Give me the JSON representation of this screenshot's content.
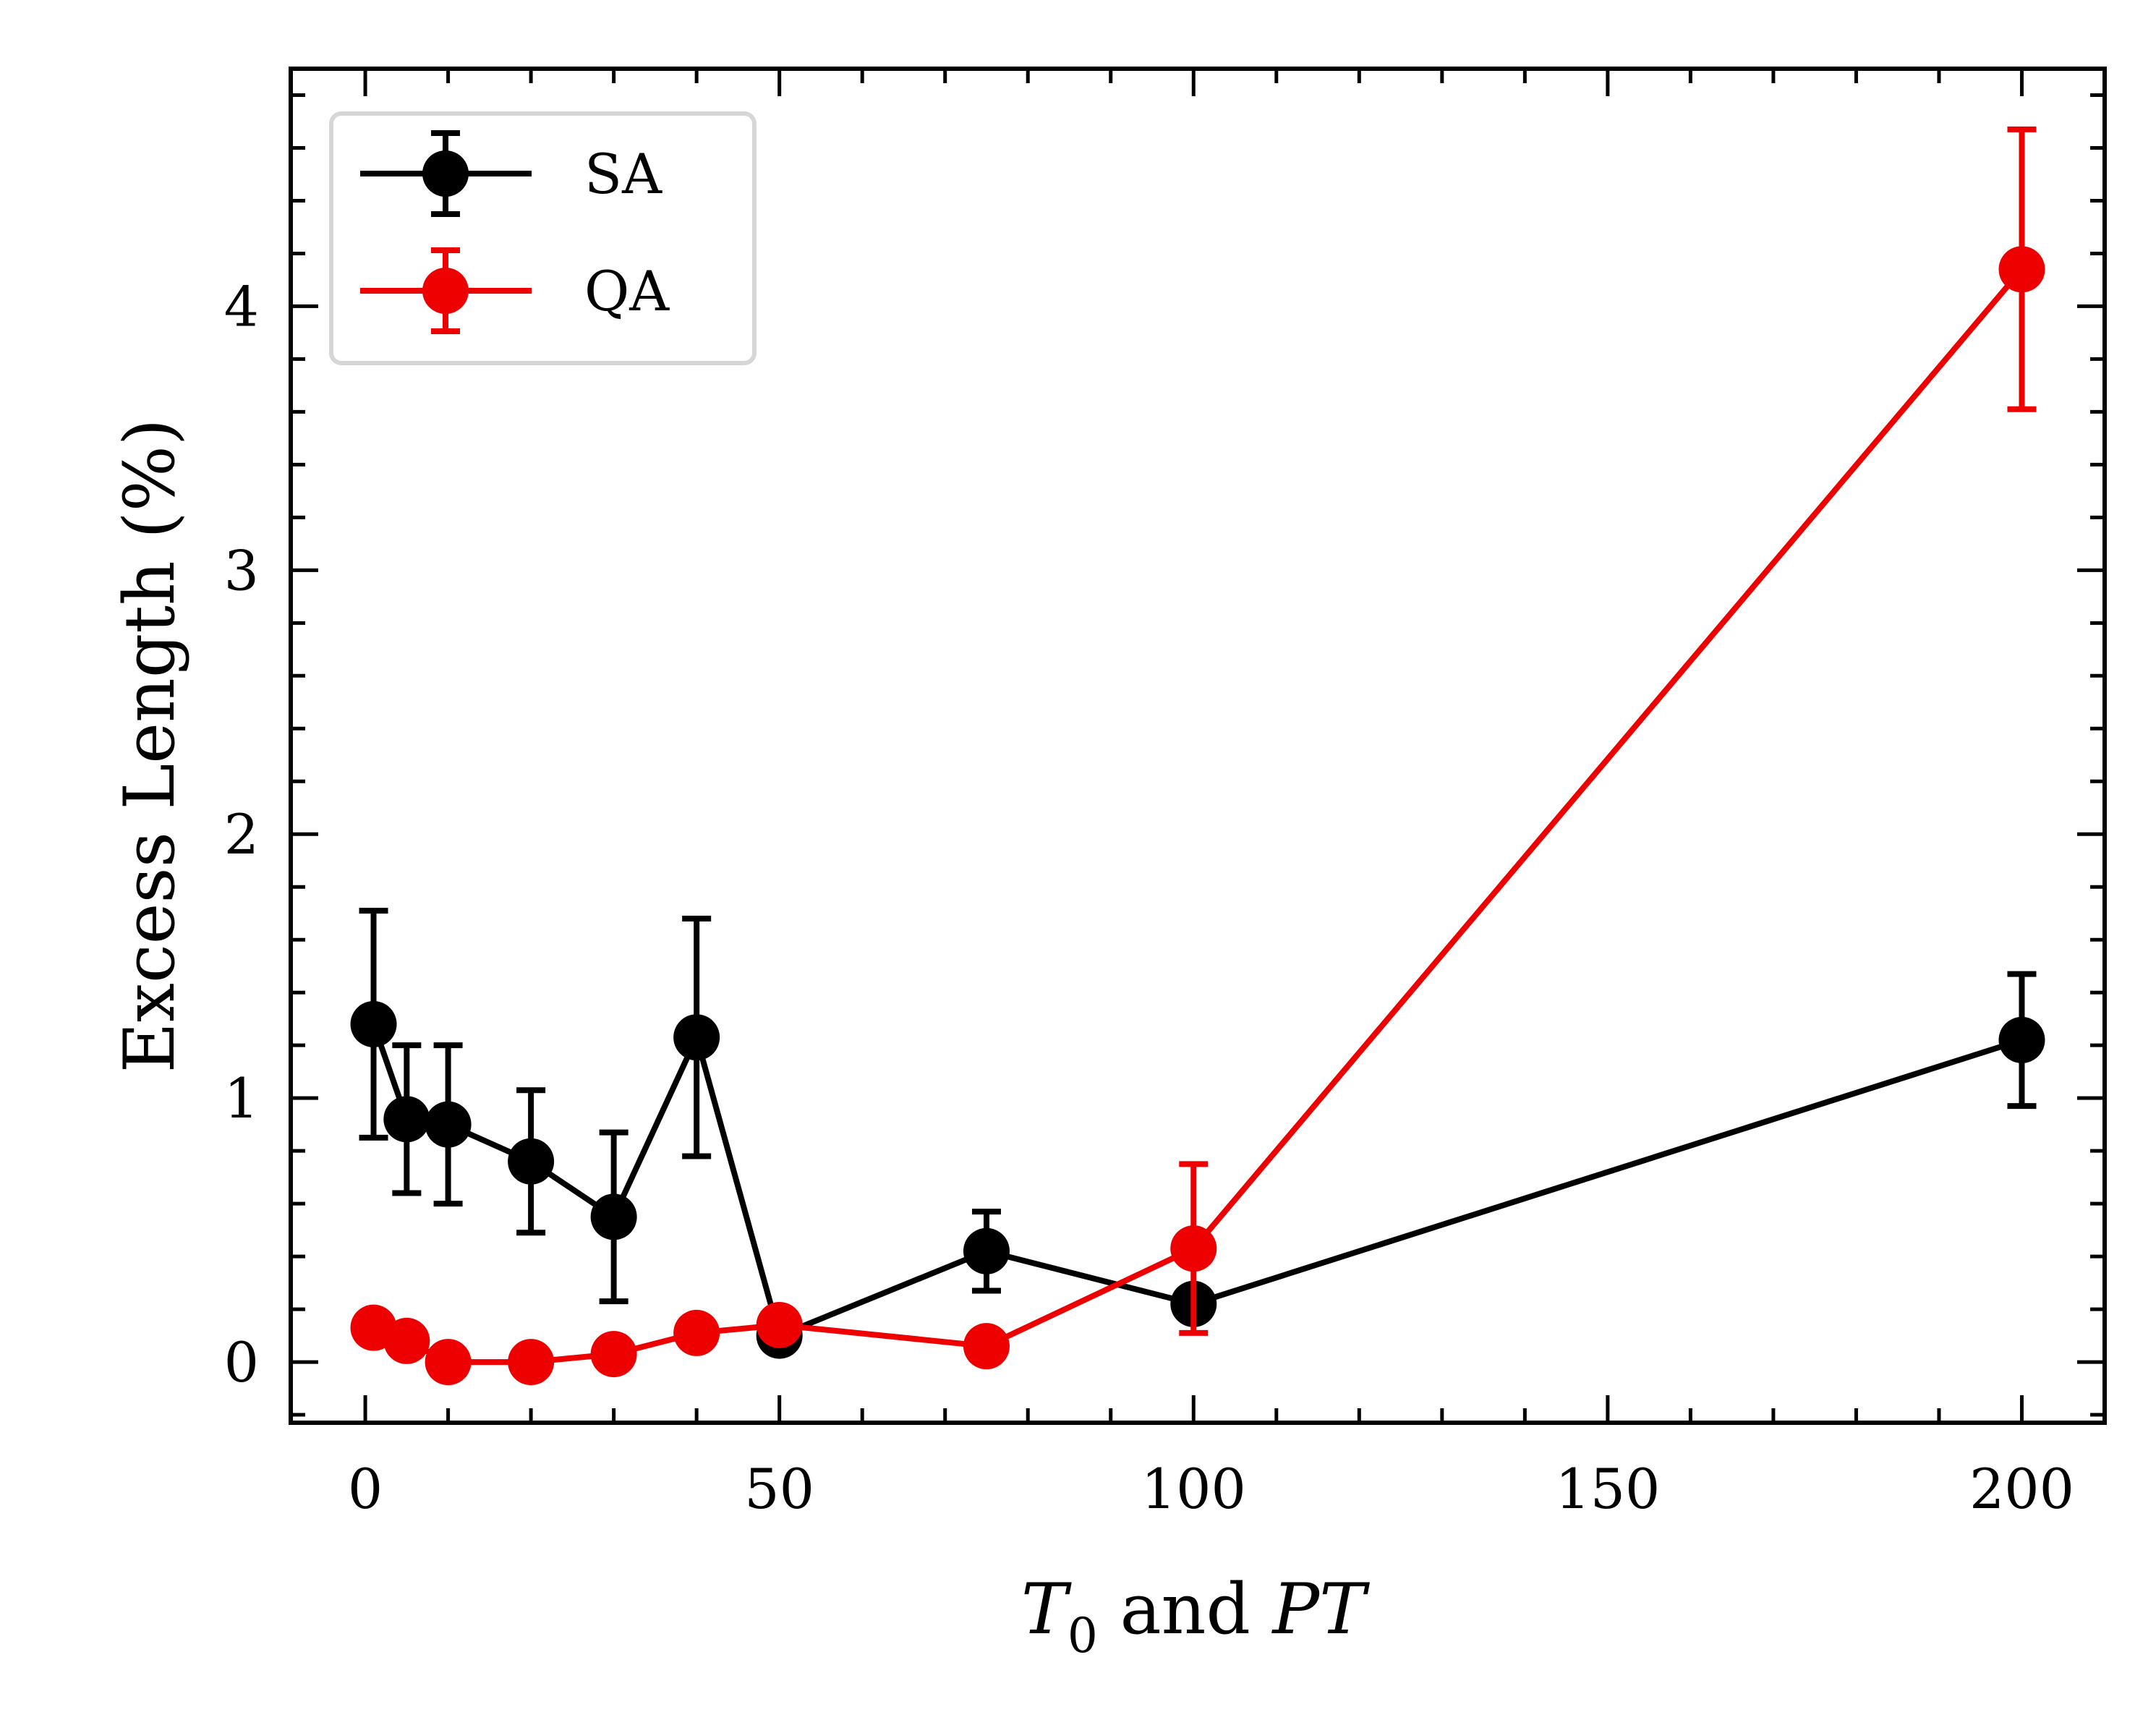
{
  "chart_data": {
    "type": "line",
    "xlabel_parts": {
      "t": "T",
      "sub": "0",
      "mid": " and ",
      "pt": "PT"
    },
    "ylabel": "Excess Length (%)",
    "xlim": [
      -9,
      210
    ],
    "ylim": [
      -0.23,
      4.9
    ],
    "xticks": [
      0,
      50,
      100,
      150,
      200
    ],
    "yticks": [
      0,
      1,
      2,
      3,
      4
    ],
    "grid": false,
    "legend_placement": "top-left",
    "series": [
      {
        "name": "SA",
        "color": "#000000",
        "x": [
          1,
          5,
          10,
          20,
          30,
          40,
          50,
          75,
          100,
          200
        ],
        "y": [
          1.28,
          0.92,
          0.9,
          0.76,
          0.55,
          1.23,
          0.1,
          0.42,
          0.22,
          1.22
        ],
        "err": [
          0.43,
          0.28,
          0.3,
          0.27,
          0.32,
          0.45,
          0.0,
          0.15,
          0.0,
          0.25
        ]
      },
      {
        "name": "QA",
        "color": "#ee0000",
        "x": [
          1,
          5,
          10,
          20,
          30,
          40,
          50,
          75,
          100,
          200
        ],
        "y": [
          0.13,
          0.08,
          0.0,
          0.0,
          0.03,
          0.11,
          0.14,
          0.06,
          0.43,
          4.14
        ],
        "err": [
          0.0,
          0.0,
          0.0,
          0.0,
          0.0,
          0.0,
          0.0,
          0.0,
          0.32,
          0.53
        ]
      }
    ]
  }
}
